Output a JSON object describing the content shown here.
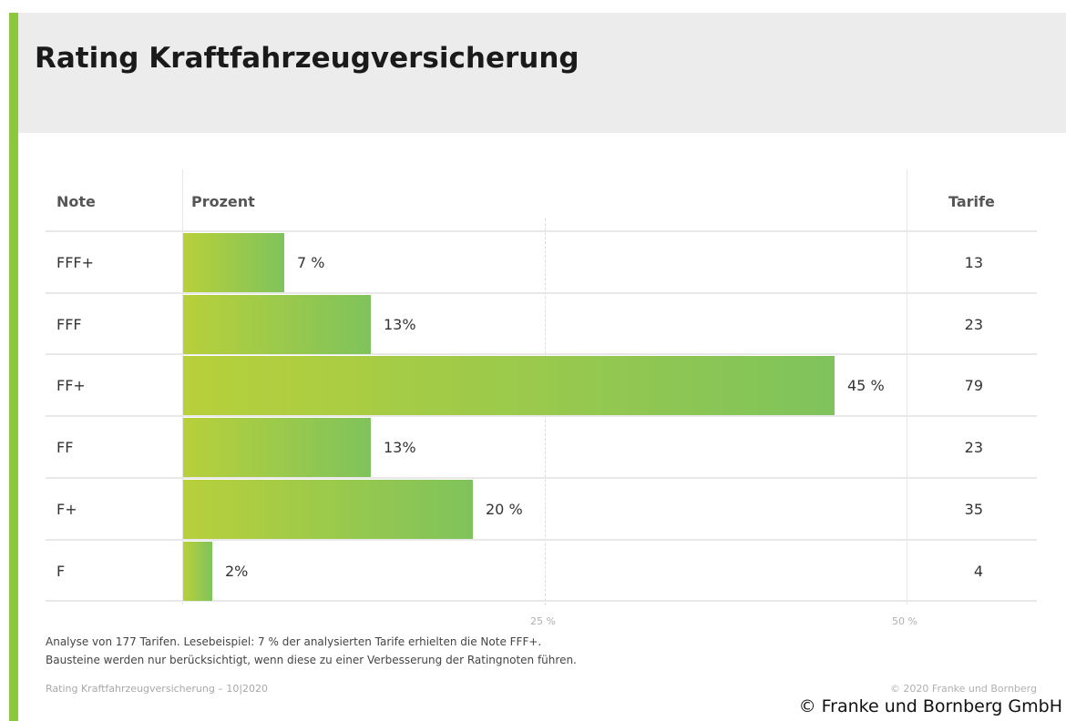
{
  "colors": {
    "accent": "#8dc63f",
    "bar_start": "#b8d03a",
    "bar_end": "#7fc35c",
    "header_bg": "#ececec"
  },
  "title": "Rating Kraftfahrzeugversicherung",
  "columns": {
    "note": "Note",
    "prozent": "Prozent",
    "tarife": "Tarife"
  },
  "chart_data": {
    "type": "bar",
    "orientation": "horizontal",
    "title": "Rating Kraftfahrzeugversicherung",
    "categories": [
      "FFF+",
      "FFF",
      "FF+",
      "FF",
      "F+",
      "F"
    ],
    "values": [
      7,
      13,
      45,
      13,
      20,
      2
    ],
    "value_labels": [
      "7 %",
      "13%",
      "45 %",
      "13%",
      "20 %",
      "2%"
    ],
    "tarife": [
      "13",
      "23",
      "79",
      "23",
      "35",
      "4"
    ],
    "xlim": [
      0,
      50
    ],
    "xticks": [
      25,
      50
    ],
    "xtick_labels": [
      "25 %",
      "50 %"
    ],
    "grid": "dashed vertical line at 25 %"
  },
  "footnote": {
    "line1": "Analyse von 177 Tarifen. Lesebeispiel: 7 % der analysierten Tarife erhielten die Note FFF+.",
    "line2": "Bausteine werden nur berücksichtigt, wenn diese zu einer Verbesserung der Ratingnoten führen."
  },
  "footer": {
    "left": "Rating Kraftfahrzeugversicherung – 10|2020",
    "right": "© 2020 Franke und Bornberg"
  },
  "watermark": "© Franke und Bornberg GmbH"
}
